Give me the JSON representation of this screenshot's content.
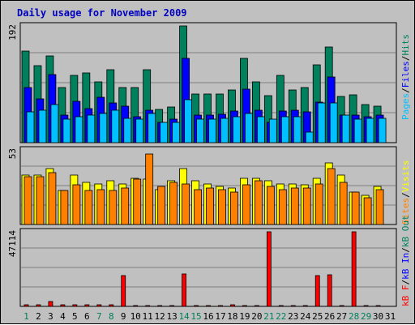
{
  "title": "Daily usage for November 2009",
  "colors": {
    "title": "#0000c0",
    "frame_bg": "#c0c0c0",
    "plot_bg": "#c0c0c0",
    "hits": "#00805c",
    "files": "#0000ff",
    "pages": "#00c0ff",
    "visits": "#ffff00",
    "sites": "#ff8000",
    "kb_in": "#0000ff",
    "kb_out": "#00805c",
    "kb_f": "#ff0000",
    "weekend_day": "#00805c",
    "weekday_day": "#000000"
  },
  "chart_data": [
    {
      "type": "bar",
      "title": "Daily usage for November 2009",
      "panel": "top",
      "ymax_label": "192",
      "ylim": [
        0,
        192
      ],
      "categories": [
        "1",
        "2",
        "3",
        "4",
        "5",
        "6",
        "7",
        "8",
        "9",
        "10",
        "11",
        "12",
        "13",
        "14",
        "15",
        "16",
        "17",
        "18",
        "19",
        "20",
        "21",
        "22",
        "23",
        "24",
        "25",
        "26",
        "27",
        "28",
        "29",
        "30"
      ],
      "legend_labels": [
        "Pages",
        "Files",
        "Hits"
      ],
      "series": [
        {
          "name": "Hits",
          "values": [
            150,
            127,
            142,
            90,
            110,
            115,
            100,
            120,
            91,
            91,
            120,
            55,
            58,
            192,
            80,
            80,
            80,
            86,
            138,
            100,
            77,
            110,
            86,
            90,
            128,
            157,
            76,
            78,
            62,
            60
          ]
        },
        {
          "name": "Files",
          "values": [
            91,
            72,
            112,
            45,
            68,
            56,
            75,
            65,
            60,
            42,
            53,
            33,
            38,
            138,
            45,
            45,
            47,
            52,
            88,
            53,
            33,
            52,
            53,
            50,
            67,
            108,
            45,
            45,
            43,
            45
          ]
        },
        {
          "name": "Pages",
          "values": [
            50,
            53,
            62,
            38,
            43,
            45,
            48,
            53,
            40,
            38,
            48,
            33,
            33,
            70,
            38,
            38,
            40,
            43,
            48,
            43,
            38,
            43,
            43,
            17,
            65,
            65,
            45,
            38,
            40,
            40
          ]
        }
      ]
    },
    {
      "type": "bar",
      "panel": "middle",
      "ymax_label": "53",
      "ylim": [
        0,
        53
      ],
      "categories": [
        "1",
        "2",
        "3",
        "4",
        "5",
        "6",
        "7",
        "8",
        "9",
        "10",
        "11",
        "12",
        "13",
        "14",
        "15",
        "16",
        "17",
        "18",
        "19",
        "20",
        "21",
        "22",
        "23",
        "24",
        "25",
        "26",
        "27",
        "28",
        "29",
        "30"
      ],
      "legend_labels": [
        "Sites",
        "Visits"
      ],
      "series": [
        {
          "name": "Visits",
          "values": [
            35,
            35,
            40,
            24,
            35,
            30,
            29,
            31,
            29,
            33,
            32,
            25,
            31,
            40,
            31,
            29,
            27,
            26,
            33,
            33,
            31,
            29,
            29,
            28,
            33,
            44,
            35,
            23,
            21,
            27
          ]
        },
        {
          "name": "Sites",
          "values": [
            34,
            34,
            37,
            24,
            28,
            24,
            25,
            24,
            26,
            32,
            50,
            27,
            30,
            29,
            25,
            26,
            25,
            23,
            28,
            31,
            27,
            25,
            26,
            26,
            29,
            40,
            30,
            23,
            19,
            25
          ]
        }
      ]
    },
    {
      "type": "bar",
      "panel": "bottom",
      "ymax_label": "47114",
      "ylim": [
        0,
        47114
      ],
      "categories": [
        "1",
        "2",
        "3",
        "4",
        "5",
        "6",
        "7",
        "8",
        "9",
        "10",
        "11",
        "12",
        "13",
        "14",
        "15",
        "16",
        "17",
        "18",
        "19",
        "20",
        "21",
        "22",
        "23",
        "24",
        "25",
        "26",
        "27",
        "28",
        "29",
        "30"
      ],
      "legend_labels": [
        "kB F",
        "kB In",
        "kB Out"
      ],
      "series": [
        {
          "name": "kB F",
          "values": [
            1000,
            1000,
            3200,
            1000,
            1000,
            1000,
            1000,
            1000,
            19600,
            500,
            500,
            500,
            500,
            20600,
            500,
            500,
            500,
            1000,
            500,
            500,
            47114,
            500,
            500,
            500,
            19600,
            20100,
            500,
            47114,
            500,
            500
          ]
        }
      ]
    }
  ],
  "x_tick_labels": [
    "1",
    "2",
    "3",
    "4",
    "5",
    "6",
    "7",
    "8",
    "9",
    "10",
    "11",
    "12",
    "13",
    "14",
    "15",
    "16",
    "17",
    "18",
    "19",
    "20",
    "21",
    "22",
    "23",
    "24",
    "25",
    "26",
    "27",
    "28",
    "29",
    "30",
    "31"
  ],
  "weekend_days": [
    1,
    7,
    8,
    14,
    15,
    21,
    22,
    28,
    29
  ],
  "legend_separator": "/"
}
